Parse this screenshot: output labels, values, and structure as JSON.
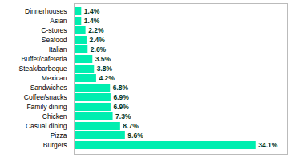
{
  "chart_data": {
    "type": "bar",
    "orientation": "horizontal",
    "categories": [
      "Burgers",
      "Pizza",
      "Casual dining",
      "Chicken",
      "Family dining",
      "Coffee/snacks",
      "Sandwiches",
      "Mexican",
      "Steak/barbeque",
      "Buffet/cafeteria",
      "Italian",
      "Seafood",
      "C-stores",
      "Asian",
      "Dinnerhouses"
    ],
    "values": [
      34.1,
      9.6,
      8.7,
      7.3,
      6.9,
      6.9,
      6.8,
      4.2,
      3.8,
      3.5,
      2.6,
      2.4,
      2.2,
      1.4,
      1.4
    ],
    "value_labels": [
      "34.1%",
      "9.6%",
      "8.7%",
      "7.3%",
      "6.9%",
      "6.9%",
      "6.8%",
      "4.2%",
      "3.8%",
      "3.5%",
      "2.6%",
      "2.4%",
      "2.2%",
      "1.4%",
      "1.4%"
    ],
    "data_labels": true,
    "color": "#00EEB0",
    "xlim": [
      0,
      40
    ],
    "tick_labels": "y",
    "grid": false
  }
}
